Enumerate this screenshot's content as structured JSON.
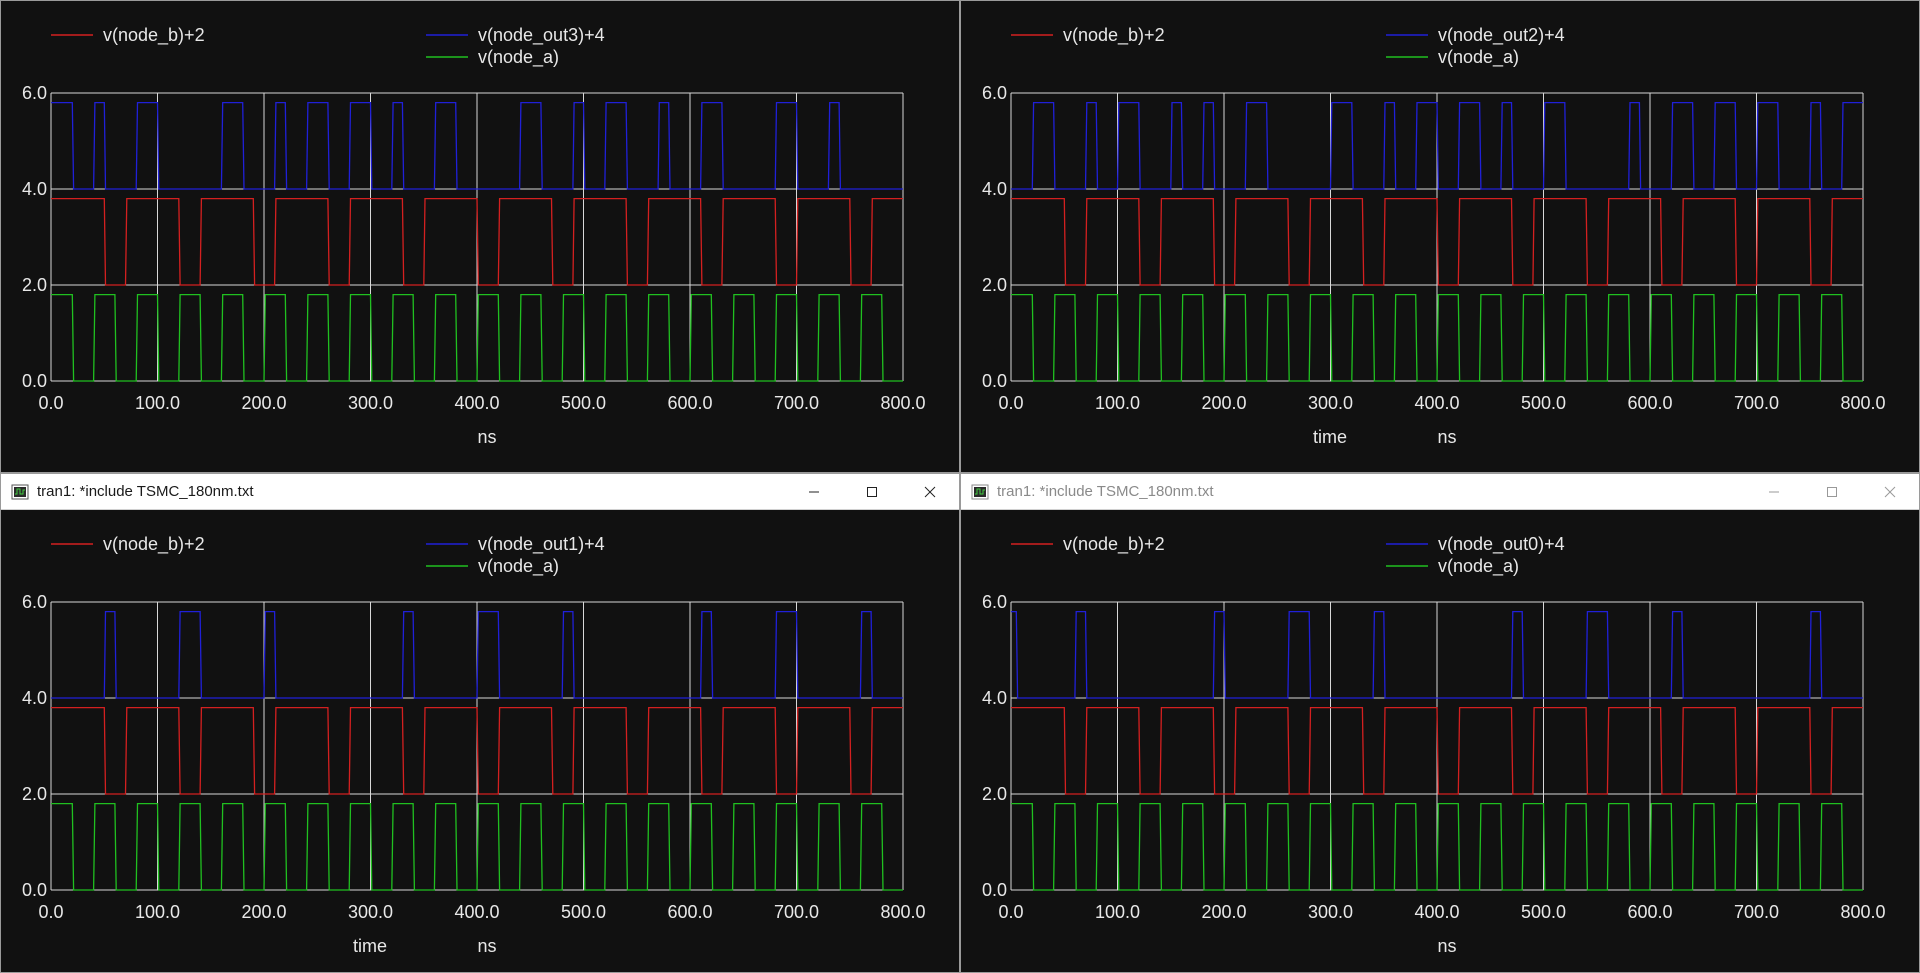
{
  "windows": [
    {
      "title": "",
      "active": true,
      "show_titlebar": false,
      "legend": [
        "v(node_b)+2",
        "v(node_out3)+4",
        "v(node_a)"
      ],
      "xlabel": [
        "",
        "ns"
      ]
    },
    {
      "title": "",
      "active": false,
      "show_titlebar": false,
      "legend": [
        "v(node_b)+2",
        "v(node_out2)+4",
        "v(node_a)"
      ],
      "xlabel": [
        "time",
        "ns"
      ]
    },
    {
      "title": "tran1: *include TSMC_180nm.txt",
      "active": true,
      "show_titlebar": true,
      "legend": [
        "v(node_b)+2",
        "v(node_out1)+4",
        "v(node_a)"
      ],
      "xlabel": [
        "time",
        "ns"
      ]
    },
    {
      "title": "tran1: *include TSMC_180nm.txt",
      "active": false,
      "show_titlebar": true,
      "legend": [
        "v(node_b)+2",
        "v(node_out0)+4",
        "v(node_a)"
      ],
      "xlabel": [
        "",
        "ns"
      ]
    }
  ],
  "chart_data": [
    {
      "type": "line",
      "xlim": [
        0,
        800
      ],
      "ylim": [
        0,
        6
      ],
      "xticks": [
        "0.0",
        "100.0",
        "200.0",
        "300.0",
        "400.0",
        "500.0",
        "600.0",
        "700.0",
        "800.0"
      ],
      "yticks": [
        "0.0",
        "2.0",
        "4.0",
        "6.0"
      ],
      "grid": true,
      "series": [
        {
          "name": "v(node_b)+2",
          "color": "#d42020",
          "low": 2.0,
          "high": 3.8,
          "high_intervals": [
            [
              0,
              50
            ],
            [
              70,
              120
            ],
            [
              140,
              190
            ],
            [
              210,
              260
            ],
            [
              280,
              330
            ],
            [
              350,
              400
            ],
            [
              420,
              470
            ],
            [
              490,
              540
            ],
            [
              560,
              610
            ],
            [
              630,
              680
            ],
            [
              700,
              750
            ],
            [
              770,
              800
            ]
          ]
        },
        {
          "name": "v(node_out3)+4",
          "color": "#2020d8",
          "low": 4.0,
          "high": 5.8,
          "high_intervals": [
            [
              0,
              20
            ],
            [
              40,
              50
            ],
            [
              80,
              100
            ],
            [
              160,
              180
            ],
            [
              210,
              220
            ],
            [
              240,
              260
            ],
            [
              280,
              300
            ],
            [
              320,
              330
            ],
            [
              360,
              380
            ],
            [
              440,
              460
            ],
            [
              490,
              500
            ],
            [
              520,
              540
            ],
            [
              570,
              580
            ],
            [
              610,
              630
            ],
            [
              680,
              700
            ],
            [
              730,
              740
            ]
          ]
        },
        {
          "name": "v(node_a)",
          "color": "#20c020",
          "low": 0.0,
          "high": 1.8,
          "high_intervals": [
            [
              0,
              20
            ],
            [
              40,
              60
            ],
            [
              80,
              100
            ],
            [
              120,
              140
            ],
            [
              160,
              180
            ],
            [
              200,
              220
            ],
            [
              240,
              260
            ],
            [
              280,
              300
            ],
            [
              320,
              340
            ],
            [
              360,
              380
            ],
            [
              400,
              420
            ],
            [
              440,
              460
            ],
            [
              480,
              500
            ],
            [
              520,
              540
            ],
            [
              560,
              580
            ],
            [
              600,
              620
            ],
            [
              640,
              660
            ],
            [
              680,
              700
            ],
            [
              720,
              740
            ],
            [
              760,
              780
            ]
          ]
        }
      ]
    },
    {
      "type": "line",
      "xlim": [
        0,
        800
      ],
      "ylim": [
        0,
        6
      ],
      "xticks": [
        "0.0",
        "100.0",
        "200.0",
        "300.0",
        "400.0",
        "500.0",
        "600.0",
        "700.0",
        "800.0"
      ],
      "yticks": [
        "0.0",
        "2.0",
        "4.0",
        "6.0"
      ],
      "grid": true,
      "series": [
        {
          "name": "v(node_b)+2",
          "color": "#d42020",
          "low": 2.0,
          "high": 3.8,
          "high_intervals": [
            [
              0,
              50
            ],
            [
              70,
              120
            ],
            [
              140,
              190
            ],
            [
              210,
              260
            ],
            [
              280,
              330
            ],
            [
              350,
              400
            ],
            [
              420,
              470
            ],
            [
              490,
              540
            ],
            [
              560,
              610
            ],
            [
              630,
              680
            ],
            [
              700,
              750
            ],
            [
              770,
              800
            ]
          ]
        },
        {
          "name": "v(node_out2)+4",
          "color": "#2020d8",
          "low": 4.0,
          "high": 5.8,
          "high_intervals": [
            [
              20,
              40
            ],
            [
              70,
              80
            ],
            [
              100,
              120
            ],
            [
              150,
              160
            ],
            [
              180,
              190
            ],
            [
              220,
              240
            ],
            [
              300,
              320
            ],
            [
              350,
              360
            ],
            [
              380,
              400
            ],
            [
              420,
              440
            ],
            [
              460,
              470
            ],
            [
              500,
              520
            ],
            [
              580,
              590
            ],
            [
              620,
              640
            ],
            [
              660,
              680
            ],
            [
              700,
              720
            ],
            [
              750,
              760
            ],
            [
              780,
              800
            ]
          ]
        },
        {
          "name": "v(node_a)",
          "color": "#20c020",
          "low": 0.0,
          "high": 1.8,
          "high_intervals": [
            [
              0,
              20
            ],
            [
              40,
              60
            ],
            [
              80,
              100
            ],
            [
              120,
              140
            ],
            [
              160,
              180
            ],
            [
              200,
              220
            ],
            [
              240,
              260
            ],
            [
              280,
              300
            ],
            [
              320,
              340
            ],
            [
              360,
              380
            ],
            [
              400,
              420
            ],
            [
              440,
              460
            ],
            [
              480,
              500
            ],
            [
              520,
              540
            ],
            [
              560,
              580
            ],
            [
              600,
              620
            ],
            [
              640,
              660
            ],
            [
              680,
              700
            ],
            [
              720,
              740
            ],
            [
              760,
              780
            ]
          ]
        }
      ]
    },
    {
      "type": "line",
      "xlim": [
        0,
        800
      ],
      "ylim": [
        0,
        6
      ],
      "xticks": [
        "0.0",
        "100.0",
        "200.0",
        "300.0",
        "400.0",
        "500.0",
        "600.0",
        "700.0",
        "800.0"
      ],
      "yticks": [
        "0.0",
        "2.0",
        "4.0",
        "6.0"
      ],
      "grid": true,
      "series": [
        {
          "name": "v(node_b)+2",
          "color": "#d42020",
          "low": 2.0,
          "high": 3.8,
          "high_intervals": [
            [
              0,
              50
            ],
            [
              70,
              120
            ],
            [
              140,
              190
            ],
            [
              210,
              260
            ],
            [
              280,
              330
            ],
            [
              350,
              400
            ],
            [
              420,
              470
            ],
            [
              490,
              540
            ],
            [
              560,
              610
            ],
            [
              630,
              680
            ],
            [
              700,
              750
            ],
            [
              770,
              800
            ]
          ]
        },
        {
          "name": "v(node_out1)+4",
          "color": "#2020d8",
          "low": 4.0,
          "high": 5.8,
          "high_intervals": [
            [
              50,
              60
            ],
            [
              120,
              140
            ],
            [
              200,
              210
            ],
            [
              330,
              340
            ],
            [
              400,
              420
            ],
            [
              480,
              490
            ],
            [
              610,
              620
            ],
            [
              680,
              700
            ],
            [
              760,
              770
            ]
          ]
        },
        {
          "name": "v(node_a)",
          "color": "#20c020",
          "low": 0.0,
          "high": 1.8,
          "high_intervals": [
            [
              0,
              20
            ],
            [
              40,
              60
            ],
            [
              80,
              100
            ],
            [
              120,
              140
            ],
            [
              160,
              180
            ],
            [
              200,
              220
            ],
            [
              240,
              260
            ],
            [
              280,
              300
            ],
            [
              320,
              340
            ],
            [
              360,
              380
            ],
            [
              400,
              420
            ],
            [
              440,
              460
            ],
            [
              480,
              500
            ],
            [
              520,
              540
            ],
            [
              560,
              580
            ],
            [
              600,
              620
            ],
            [
              640,
              660
            ],
            [
              680,
              700
            ],
            [
              720,
              740
            ],
            [
              760,
              780
            ]
          ]
        }
      ]
    },
    {
      "type": "line",
      "xlim": [
        0,
        800
      ],
      "ylim": [
        0,
        6
      ],
      "xticks": [
        "0.0",
        "100.0",
        "200.0",
        "300.0",
        "400.0",
        "500.0",
        "600.0",
        "700.0",
        "800.0"
      ],
      "yticks": [
        "0.0",
        "2.0",
        "4.0",
        "6.0"
      ],
      "grid": true,
      "series": [
        {
          "name": "v(node_b)+2",
          "color": "#d42020",
          "low": 2.0,
          "high": 3.8,
          "high_intervals": [
            [
              0,
              50
            ],
            [
              70,
              120
            ],
            [
              140,
              190
            ],
            [
              210,
              260
            ],
            [
              280,
              330
            ],
            [
              350,
              400
            ],
            [
              420,
              470
            ],
            [
              490,
              540
            ],
            [
              560,
              610
            ],
            [
              630,
              680
            ],
            [
              700,
              750
            ],
            [
              770,
              800
            ]
          ]
        },
        {
          "name": "v(node_out0)+4",
          "color": "#2020d8",
          "low": 4.0,
          "high": 5.8,
          "high_intervals": [
            [
              0,
              5
            ],
            [
              60,
              70
            ],
            [
              190,
              200
            ],
            [
              260,
              280
            ],
            [
              340,
              350
            ],
            [
              470,
              480
            ],
            [
              540,
              560
            ],
            [
              620,
              630
            ],
            [
              750,
              760
            ]
          ]
        },
        {
          "name": "v(node_a)",
          "color": "#20c020",
          "low": 0.0,
          "high": 1.8,
          "high_intervals": [
            [
              0,
              20
            ],
            [
              40,
              60
            ],
            [
              80,
              100
            ],
            [
              120,
              140
            ],
            [
              160,
              180
            ],
            [
              200,
              220
            ],
            [
              240,
              260
            ],
            [
              280,
              300
            ],
            [
              320,
              340
            ],
            [
              360,
              380
            ],
            [
              400,
              420
            ],
            [
              440,
              460
            ],
            [
              480,
              500
            ],
            [
              520,
              540
            ],
            [
              560,
              580
            ],
            [
              600,
              620
            ],
            [
              640,
              660
            ],
            [
              680,
              700
            ],
            [
              720,
              740
            ],
            [
              760,
              780
            ]
          ]
        }
      ]
    }
  ]
}
